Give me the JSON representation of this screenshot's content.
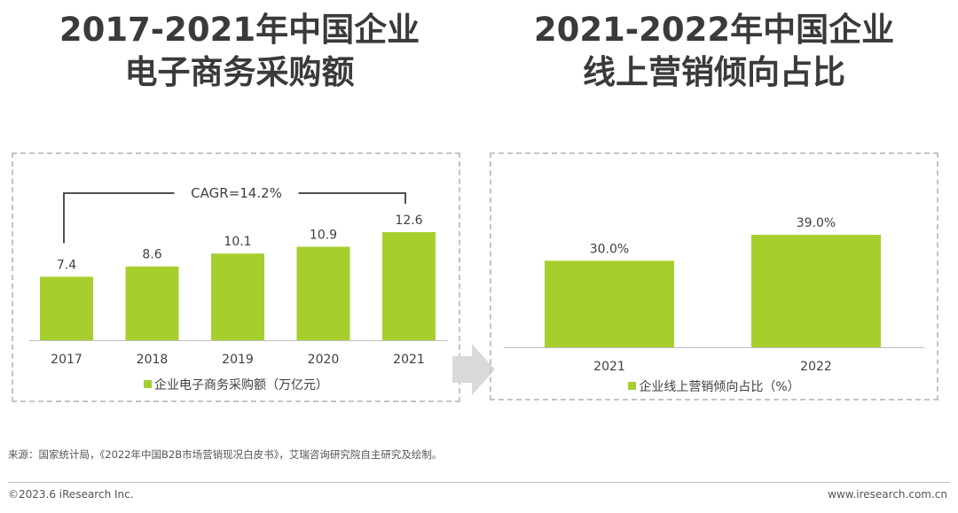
{
  "titles": {
    "left_line1": "2017-2021年中国企业",
    "left_line2": "电子商务采购额",
    "right_line1": "2021-2022年中国企业",
    "right_line2": "线上营销倾向占比"
  },
  "colors": {
    "bar": "#a6cf2e",
    "bracket": "#505050",
    "arrow": "#d9d9d9"
  },
  "chart_data": [
    {
      "type": "bar",
      "categories": [
        "2017",
        "2018",
        "2019",
        "2020",
        "2021"
      ],
      "series": [
        {
          "name": "企业电子商务采购额（万亿元）",
          "values": [
            7.4,
            8.6,
            10.1,
            10.9,
            12.6
          ]
        }
      ],
      "data_labels": [
        "7.4",
        "8.6",
        "10.1",
        "10.9",
        "12.6"
      ],
      "annotation": "CAGR=14.2%",
      "ylim": [
        0,
        15
      ],
      "grid": false,
      "legend_position": "bottom"
    },
    {
      "type": "bar",
      "categories": [
        "2021",
        "2022"
      ],
      "series": [
        {
          "name": "企业线上营销倾向占比（%）",
          "values": [
            30.0,
            39.0
          ]
        }
      ],
      "data_labels": [
        "30.0%",
        "39.0%"
      ],
      "ylim": [
        0,
        45
      ],
      "grid": false,
      "legend_position": "bottom"
    }
  ],
  "footer": {
    "source": "来源：国家统计局，《2022年中国B2B市场营销现况白皮书》，艾瑞咨询研究院自主研究及绘制。",
    "copyright": "©2023.6 iResearch Inc.",
    "website": "www.iresearch.com.cn"
  }
}
